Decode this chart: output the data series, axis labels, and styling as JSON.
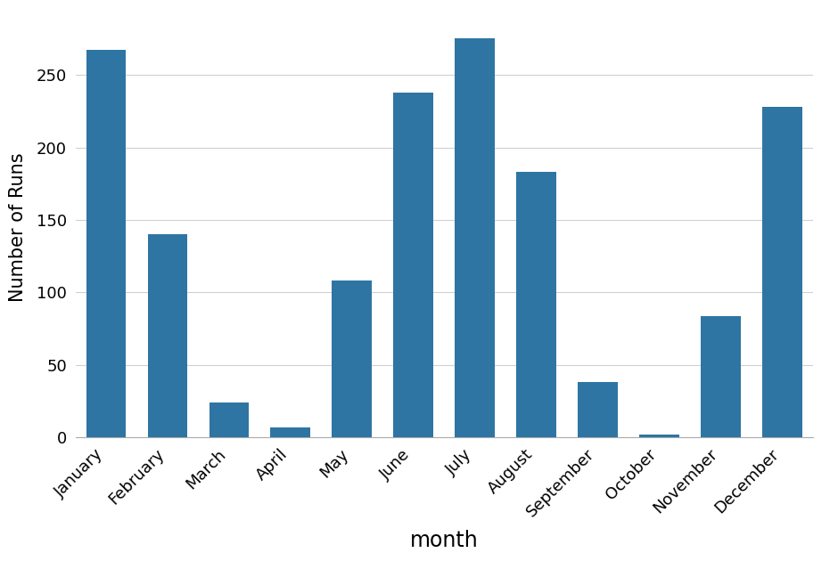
{
  "categories": [
    "January",
    "February",
    "March",
    "April",
    "May",
    "June",
    "July",
    "August",
    "September",
    "October",
    "November",
    "December"
  ],
  "values": [
    267,
    140,
    24,
    7,
    108,
    238,
    275,
    183,
    38,
    2,
    84,
    228
  ],
  "bar_color": "#2e75a3",
  "xlabel": "month",
  "ylabel": "Number of Runs",
  "ylim": [
    0,
    290
  ],
  "yticks": [
    0,
    50,
    100,
    150,
    200,
    250
  ],
  "grid_color": "#d0d0d0",
  "background_color": "#ffffff",
  "xlabel_fontsize": 17,
  "ylabel_fontsize": 15,
  "tick_fontsize": 13,
  "bar_width": 0.65
}
